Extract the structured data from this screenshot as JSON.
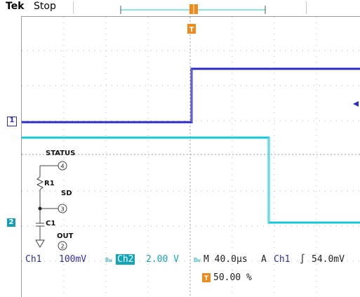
{
  "header": {
    "brand": "Tek",
    "state": "Stop"
  },
  "circuit": {
    "status_label": "STATUS",
    "status_pin": "4",
    "r1_label": "R1",
    "sd_label": "SD",
    "sd_pin": "3",
    "c1_label": "C1",
    "out_label": "OUT",
    "out_pin": "2"
  },
  "markers": {
    "ch1": "1",
    "ch2": "2",
    "trigger": "T"
  },
  "readout": {
    "ch1_name": "Ch1",
    "ch1_scale": "100mV",
    "ch2_name": "Ch2",
    "ch2_scale": "2.00 V",
    "timebase": "M 40.0µs",
    "trigger_mode": "A",
    "trigger_source": "Ch1",
    "trigger_slope": "∫",
    "trigger_level": "54.0mV",
    "trigger_position": "50.00 %"
  },
  "colors": {
    "ch1": "#2b2bc8",
    "ch2": "#14c8d8",
    "trigger": "#f08a1c"
  }
}
